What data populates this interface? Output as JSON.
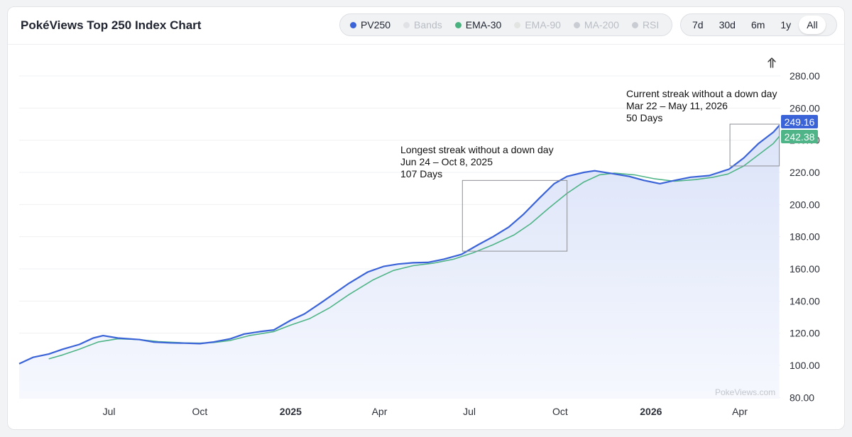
{
  "title": "PokéViews Top 250 Index Chart",
  "series_toggles": [
    {
      "label": "PV250",
      "color": "#3a63d8",
      "active": true
    },
    {
      "label": "Bands",
      "color": "#dfe1e5",
      "active": false
    },
    {
      "label": "EMA-30",
      "color": "#49b27f",
      "active": true
    },
    {
      "label": "EMA-90",
      "color": "#e2e4e2",
      "active": false
    },
    {
      "label": "MA-200",
      "color": "#c9ccd2",
      "active": false
    },
    {
      "label": "RSI",
      "color": "#c9ccd2",
      "active": false
    }
  ],
  "range_buttons": [
    {
      "label": "7d",
      "active": false
    },
    {
      "label": "30d",
      "active": false
    },
    {
      "label": "6m",
      "active": false
    },
    {
      "label": "1y",
      "active": false
    },
    {
      "label": "All",
      "active": true
    }
  ],
  "reset_icon": "up-arrow-icon",
  "watermark": "PokeViews.com",
  "colors": {
    "pv250": "#3a63d8",
    "ema30": "#4fb487",
    "area_top": "#dbe3f8",
    "area_bottom": "#f6f8fe"
  },
  "chart_data": {
    "type": "line",
    "title": "PokéViews Top 250 Index Chart",
    "y_ticks": [
      80,
      100,
      120,
      140,
      160,
      180,
      200,
      220,
      240,
      260,
      280
    ],
    "y_tick_labels": [
      "80.00",
      "100.00",
      "120.00",
      "140.00",
      "160.00",
      "180.00",
      "200.00",
      "220.00",
      "240.00",
      "260.00",
      "280.00"
    ],
    "ylim": [
      80,
      290
    ],
    "x_ticks": [
      {
        "label": "Jul",
        "date": "2024-07-01",
        "year": false
      },
      {
        "label": "Oct",
        "date": "2024-10-01",
        "year": false
      },
      {
        "label": "2025",
        "date": "2025-01-01",
        "year": true
      },
      {
        "label": "Apr",
        "date": "2025-04-01",
        "year": false
      },
      {
        "label": "Jul",
        "date": "2025-07-01",
        "year": false
      },
      {
        "label": "Oct",
        "date": "2025-10-01",
        "year": false
      },
      {
        "label": "2026",
        "date": "2026-01-01",
        "year": true
      },
      {
        "label": "Apr",
        "date": "2026-04-01",
        "year": false
      }
    ],
    "xlim": [
      "2024-04-01",
      "2026-05-12"
    ],
    "series": [
      {
        "name": "PV250",
        "last_value": "249.16",
        "points": [
          [
            "2024-04-01",
            101
          ],
          [
            "2024-04-15",
            105
          ],
          [
            "2024-05-01",
            107
          ],
          [
            "2024-05-15",
            110
          ],
          [
            "2024-06-01",
            113
          ],
          [
            "2024-06-15",
            117
          ],
          [
            "2024-06-25",
            118.5
          ],
          [
            "2024-07-10",
            117
          ],
          [
            "2024-08-01",
            116
          ],
          [
            "2024-08-15",
            114.5
          ],
          [
            "2024-09-01",
            114
          ],
          [
            "2024-09-15",
            113.8
          ],
          [
            "2024-10-01",
            113.5
          ],
          [
            "2024-10-15",
            114.5
          ],
          [
            "2024-11-01",
            116.5
          ],
          [
            "2024-11-15",
            119.5
          ],
          [
            "2024-12-01",
            121
          ],
          [
            "2024-12-15",
            122
          ],
          [
            "2025-01-01",
            128
          ],
          [
            "2025-01-15",
            132
          ],
          [
            "2025-02-01",
            139
          ],
          [
            "2025-02-15",
            145
          ],
          [
            "2025-03-01",
            151
          ],
          [
            "2025-03-20",
            158
          ],
          [
            "2025-04-05",
            161.5
          ],
          [
            "2025-04-20",
            163
          ],
          [
            "2025-05-05",
            163.8
          ],
          [
            "2025-05-20",
            164
          ],
          [
            "2025-06-05",
            166
          ],
          [
            "2025-06-23",
            169
          ],
          [
            "2025-07-10",
            175
          ],
          [
            "2025-07-25",
            180
          ],
          [
            "2025-08-10",
            186
          ],
          [
            "2025-08-25",
            194
          ],
          [
            "2025-09-10",
            204
          ],
          [
            "2025-09-25",
            213
          ],
          [
            "2025-10-08",
            217.5
          ],
          [
            "2025-10-25",
            220
          ],
          [
            "2025-11-05",
            221
          ],
          [
            "2025-11-20",
            219.5
          ],
          [
            "2025-12-10",
            217.5
          ],
          [
            "2025-12-25",
            215
          ],
          [
            "2026-01-10",
            213
          ],
          [
            "2026-01-25",
            215
          ],
          [
            "2026-02-10",
            217
          ],
          [
            "2026-03-01",
            218
          ],
          [
            "2026-03-21",
            222
          ],
          [
            "2026-04-05",
            229
          ],
          [
            "2026-04-20",
            238
          ],
          [
            "2026-05-05",
            245
          ],
          [
            "2026-05-11",
            249.16
          ]
        ]
      },
      {
        "name": "EMA-30",
        "last_value": "242.38",
        "points": [
          [
            "2024-05-01",
            104
          ],
          [
            "2024-05-15",
            106.5
          ],
          [
            "2024-06-01",
            110
          ],
          [
            "2024-06-20",
            114.5
          ],
          [
            "2024-07-10",
            116.5
          ],
          [
            "2024-08-01",
            116
          ],
          [
            "2024-08-20",
            114.8
          ],
          [
            "2024-09-15",
            114
          ],
          [
            "2024-10-01",
            113.8
          ],
          [
            "2024-10-15",
            114.2
          ],
          [
            "2024-11-01",
            115.5
          ],
          [
            "2024-11-20",
            118.5
          ],
          [
            "2024-12-15",
            121
          ],
          [
            "2025-01-01",
            125
          ],
          [
            "2025-01-20",
            129
          ],
          [
            "2025-02-10",
            136
          ],
          [
            "2025-03-01",
            144
          ],
          [
            "2025-03-25",
            153
          ],
          [
            "2025-04-15",
            159
          ],
          [
            "2025-05-05",
            162
          ],
          [
            "2025-05-25",
            163.5
          ],
          [
            "2025-06-15",
            166
          ],
          [
            "2025-07-05",
            170
          ],
          [
            "2025-07-25",
            175
          ],
          [
            "2025-08-15",
            181
          ],
          [
            "2025-09-01",
            188
          ],
          [
            "2025-09-20",
            198
          ],
          [
            "2025-10-08",
            207
          ],
          [
            "2025-10-25",
            214
          ],
          [
            "2025-11-10",
            218.5
          ],
          [
            "2025-11-25",
            219.5
          ],
          [
            "2025-12-15",
            218.5
          ],
          [
            "2026-01-05",
            216
          ],
          [
            "2026-01-25",
            214.5
          ],
          [
            "2026-02-15",
            215.5
          ],
          [
            "2026-03-05",
            217
          ],
          [
            "2026-03-20",
            219
          ],
          [
            "2026-04-05",
            224
          ],
          [
            "2026-04-20",
            231
          ],
          [
            "2026-05-05",
            238
          ],
          [
            "2026-05-11",
            242.38
          ]
        ]
      }
    ],
    "annotations": [
      {
        "lines": [
          "Longest streak without a down day",
          "Jun 24 – Oct 8, 2025",
          "107 Days"
        ],
        "x_start": "2025-06-24",
        "x_end": "2025-10-08",
        "y_start": 171,
        "y_end": 215
      },
      {
        "lines": [
          "Current streak without a down day",
          "Mar 22 – May 11, 2026",
          "50 Days"
        ],
        "x_start": "2026-03-22",
        "x_end": "2026-05-11",
        "y_start": 224,
        "y_end": 250
      }
    ],
    "grid": true,
    "legend": "top-right"
  }
}
